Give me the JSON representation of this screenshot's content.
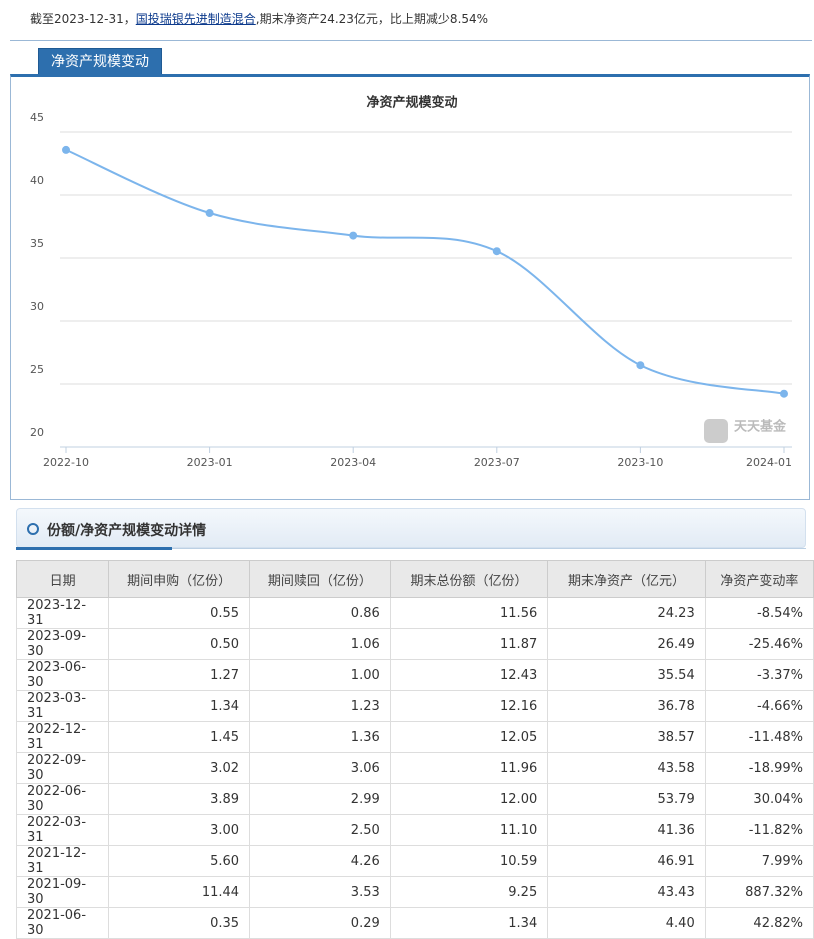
{
  "summary": {
    "prefix": "截至2023-12-31，",
    "fund_link": "国投瑞银先进制造混合",
    "suffix": ",期末净资产24.23亿元，比上期减少8.54%"
  },
  "tab": "净资产规模变动",
  "chart_data": {
    "type": "line",
    "title": "净资产规模变动",
    "categories": [
      "2022-10",
      "2023-01",
      "2023-04",
      "2023-07",
      "2023-10",
      "2024-01"
    ],
    "values": [
      43.58,
      38.57,
      36.78,
      35.54,
      26.49,
      24.23
    ],
    "color": "#7cb5ec",
    "ylim": [
      20,
      45
    ],
    "yticks": [
      20,
      25,
      30,
      35,
      40,
      45
    ],
    "grid": true,
    "watermark": "天天基金"
  },
  "detail": {
    "title": "份额/净资产规模变动详情",
    "table": {
      "headers": [
        "日期",
        "期间申购（亿份）",
        "期间赎回（亿份）",
        "期末总份额（亿份）",
        "期末净资产（亿元）",
        "净资产变动率"
      ],
      "rows": [
        [
          "2023-12-31",
          "0.55",
          "0.86",
          "11.56",
          "24.23",
          "-8.54%"
        ],
        [
          "2023-09-30",
          "0.50",
          "1.06",
          "11.87",
          "26.49",
          "-25.46%"
        ],
        [
          "2023-06-30",
          "1.27",
          "1.00",
          "12.43",
          "35.54",
          "-3.37%"
        ],
        [
          "2023-03-31",
          "1.34",
          "1.23",
          "12.16",
          "36.78",
          "-4.66%"
        ],
        [
          "2022-12-31",
          "1.45",
          "1.36",
          "12.05",
          "38.57",
          "-11.48%"
        ],
        [
          "2022-09-30",
          "3.02",
          "3.06",
          "11.96",
          "43.58",
          "-18.99%"
        ],
        [
          "2022-06-30",
          "3.89",
          "2.99",
          "12.00",
          "53.79",
          "30.04%"
        ],
        [
          "2022-03-31",
          "3.00",
          "2.50",
          "11.10",
          "41.36",
          "-11.82%"
        ],
        [
          "2021-12-31",
          "5.60",
          "4.26",
          "10.59",
          "46.91",
          "7.99%"
        ],
        [
          "2021-09-30",
          "11.44",
          "3.53",
          "9.25",
          "43.43",
          "887.32%"
        ],
        [
          "2021-06-30",
          "0.35",
          "0.29",
          "1.34",
          "4.40",
          "42.82%"
        ]
      ]
    }
  }
}
